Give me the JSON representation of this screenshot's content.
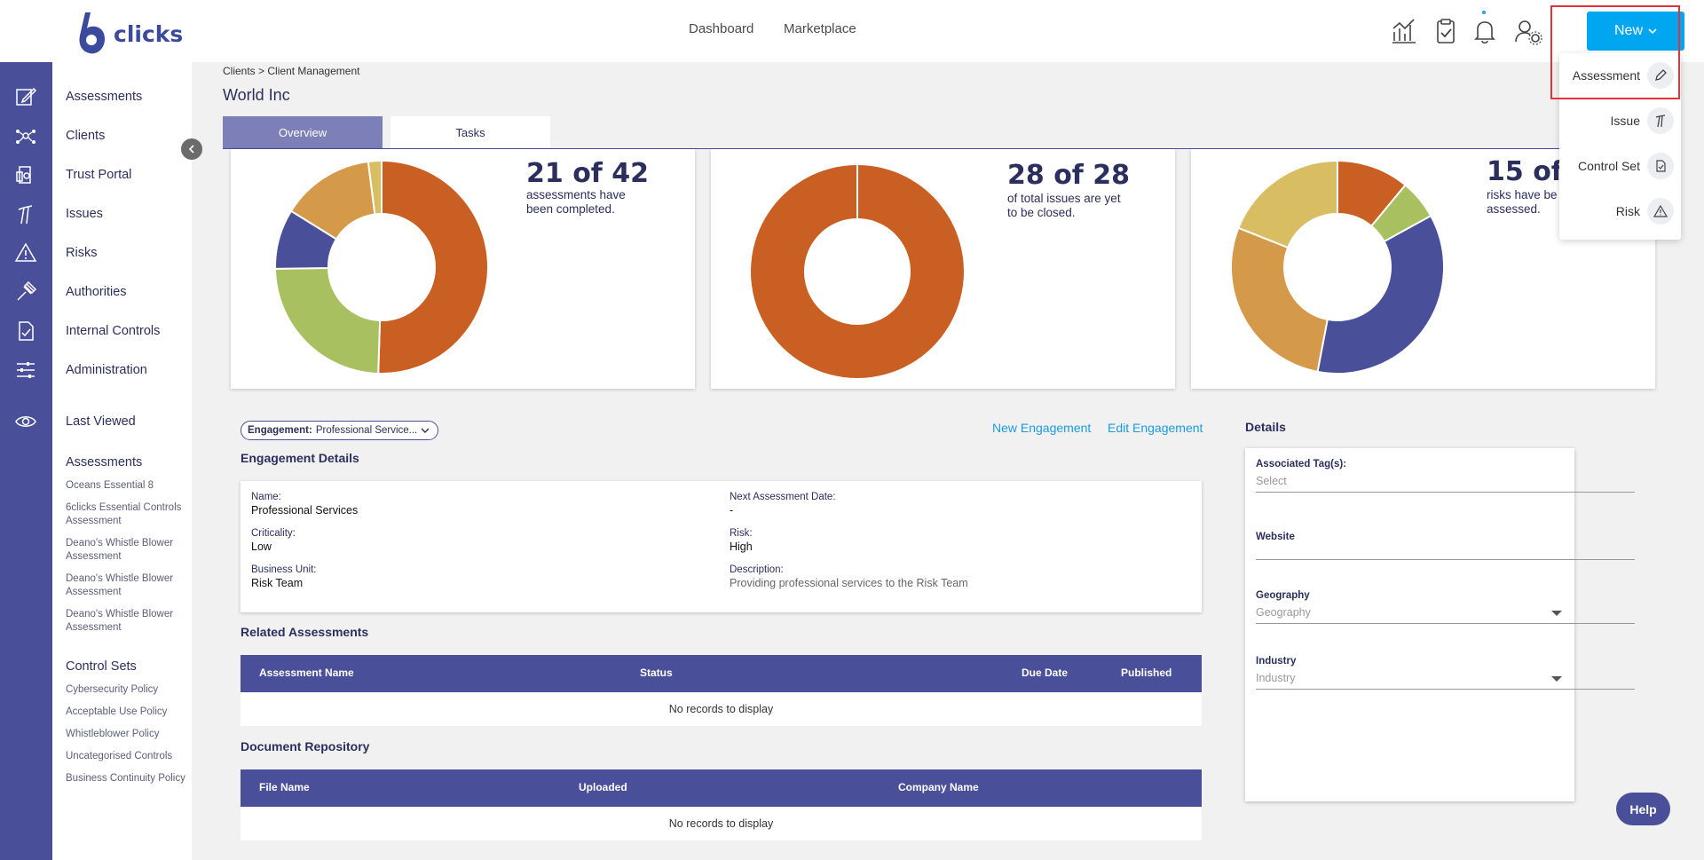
{
  "header": {
    "logo_text": "clicks",
    "nav": [
      "Dashboard",
      "Marketplace"
    ],
    "new_button": "New",
    "dropdown": [
      {
        "label": "Assessment",
        "icon": "pencil-icon"
      },
      {
        "label": "Issue",
        "icon": "issue-icon"
      },
      {
        "label": "Control Set",
        "icon": "document-check-icon"
      },
      {
        "label": "Risk",
        "icon": "warning-icon"
      }
    ]
  },
  "sidebar": {
    "items": [
      "Assessments",
      "Clients",
      "Trust Portal",
      "Issues",
      "Risks",
      "Authorities",
      "Internal Controls",
      "Administration"
    ],
    "last_viewed": "Last Viewed",
    "assessments_heading": "Assessments",
    "assessments": [
      "Oceans Essential 8",
      "6clicks Essential Controls Assessment",
      "Deano's Whistle Blower Assessment",
      "Deano's Whistle Blower Assessment",
      "Deano's Whistle Blower Assessment"
    ],
    "control_sets_heading": "Control Sets",
    "control_sets": [
      "Cybersecurity Policy",
      "Acceptable Use Policy",
      "Whistleblower Policy",
      "Uncategorised Controls",
      "Business Continuity Policy"
    ]
  },
  "breadcrumb": {
    "parent": "Clients",
    "separator": ">",
    "current": "Client Management"
  },
  "page_title": "World Inc",
  "tabs": [
    "Overview",
    "Tasks"
  ],
  "cards": [
    {
      "headline": "21 of 42",
      "description": "assessments have been completed."
    },
    {
      "headline": "28 of 28",
      "description": "of total issues are yet to be closed."
    },
    {
      "headline": "15 of",
      "description": "risks have be assessed."
    }
  ],
  "chart_data": [
    {
      "type": "pie",
      "title": "",
      "values": [
        50,
        24,
        9,
        14,
        2
      ],
      "colors": [
        "#c95f22",
        "#a9c060",
        "#4a4f9a",
        "#d49a4a",
        "#d8bd62"
      ]
    },
    {
      "type": "pie",
      "title": "",
      "values": [
        100
      ],
      "colors": [
        "#c95f22"
      ]
    },
    {
      "type": "pie",
      "title": "",
      "values": [
        11,
        6,
        36,
        28,
        19
      ],
      "colors": [
        "#c95f22",
        "#a9c060",
        "#4a4f9a",
        "#d49a4a",
        "#d8bd62"
      ]
    }
  ],
  "engagement": {
    "pill_label": "Engagement:",
    "pill_value": "Professional Service...",
    "new_link": "New Engagement",
    "edit_link": "Edit Engagement",
    "section_title": "Engagement Details",
    "fields": {
      "name_label": "Name:",
      "name": "Professional Services",
      "criticality_label": "Criticality:",
      "criticality": "Low",
      "business_unit_label": "Business Unit:",
      "business_unit": "Risk Team",
      "next_date_label": "Next Assessment Date:",
      "next_date": "-",
      "risk_label": "Risk:",
      "risk": "High",
      "description_label": "Description:",
      "description": "Providing professional services to the Risk Team"
    }
  },
  "related_assessments": {
    "title": "Related Assessments",
    "columns": [
      "Assessment Name",
      "Status",
      "Due Date",
      "Published"
    ],
    "empty": "No records to display"
  },
  "documents": {
    "title": "Document Repository",
    "columns": [
      "File Name",
      "Uploaded",
      "Company Name"
    ],
    "empty": "No records to display"
  },
  "details": {
    "title": "Details",
    "tags_label": "Associated Tag(s):",
    "tags_placeholder": "Select",
    "website_label": "Website",
    "geography_label": "Geography",
    "geography_placeholder": "Geography",
    "industry_label": "Industry",
    "industry_placeholder": "Industry"
  },
  "help": "Help",
  "colors": {
    "brand": "#4a4f9a",
    "accent": "#00a6f0",
    "highlight": "#e53238"
  }
}
